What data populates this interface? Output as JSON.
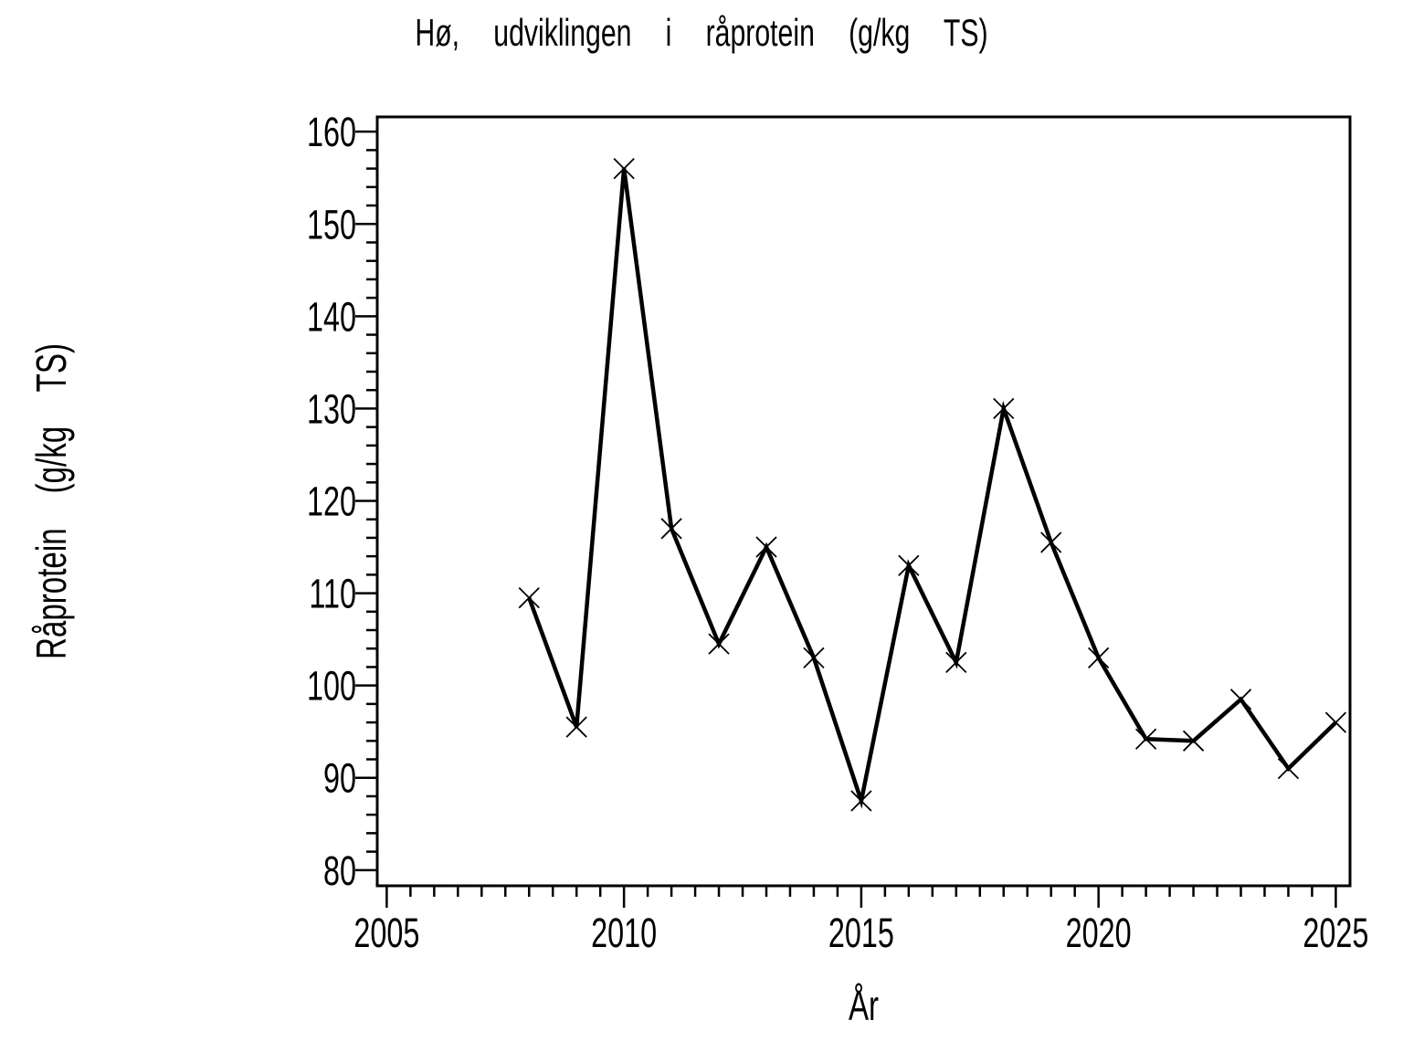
{
  "chart_data": {
    "type": "line",
    "title": "Hø, udviklingen i råprotein (g/kg TS)",
    "xlabel": "År",
    "ylabel": "Råprotein (g/kg TS)",
    "x": [
      2008,
      2009,
      2010,
      2011,
      2012,
      2013,
      2014,
      2015,
      2016,
      2017,
      2018,
      2019,
      2020,
      2021,
      2022,
      2023,
      2024,
      2025
    ],
    "series": [
      {
        "name": "Råprotein (g/kg TS)",
        "values": [
          109.5,
          95.5,
          156,
          117,
          104.5,
          115,
          103,
          87.5,
          113,
          102.5,
          130,
          115.5,
          103,
          94.2,
          94,
          98.5,
          91,
          96
        ],
        "marker": "x",
        "color": "#000000"
      }
    ],
    "xlim": [
      2004.8,
      2025.3
    ],
    "ylim": [
      78.3,
      161.6
    ],
    "x_ticks": {
      "major": [
        2005,
        2010,
        2015,
        2020,
        2025
      ],
      "minor_step": 0.5
    },
    "y_ticks": {
      "major": [
        80,
        90,
        100,
        110,
        120,
        130,
        140,
        150,
        160
      ],
      "minor_step": 2
    },
    "grid": false,
    "legend": false,
    "colors": {
      "foreground": "#000000",
      "background": "#ffffff"
    }
  }
}
